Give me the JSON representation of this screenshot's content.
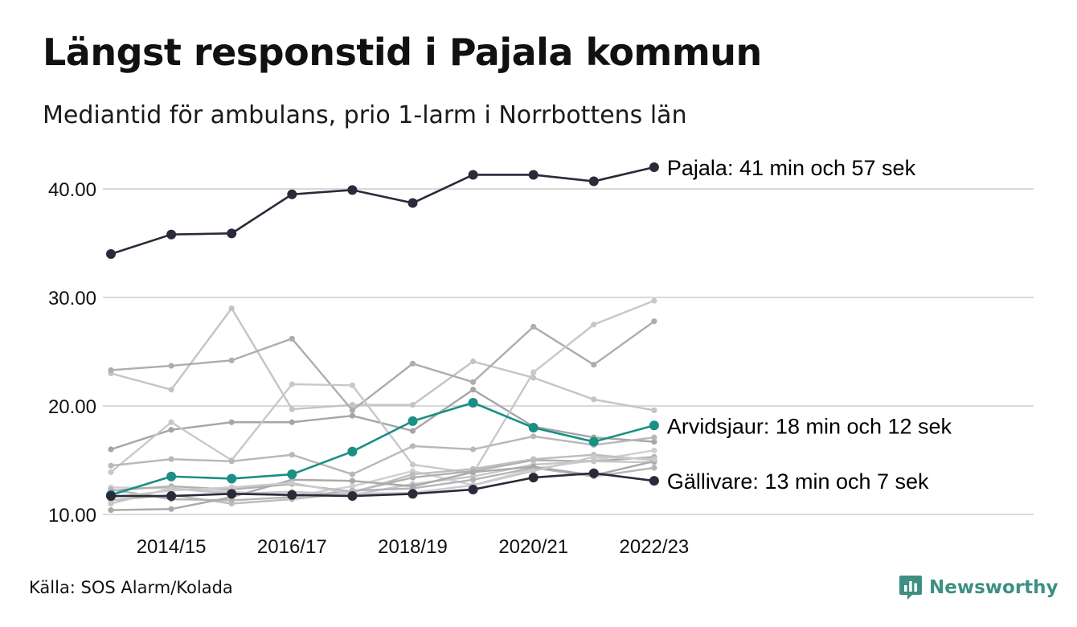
{
  "title": "Längst responstid i Pajala kommun",
  "subtitle": "Mediantid för ambulans, prio 1-larm i Norrbottens län",
  "source": "Källa: SOS Alarm/Kolada",
  "brand": {
    "name": "Newsworthy",
    "icon": "newsworthy-logo-icon",
    "color": "#3e8f84"
  },
  "colors": {
    "dark": "#2a2a3a",
    "teal": "#1a8f85",
    "grid": "#d9d9d9",
    "grays": [
      "#c4c4c4",
      "#adadad",
      "#a6a6a6",
      "#c8c8c8",
      "#b8b8b8",
      "#d0d0d0",
      "#b0b0b0",
      "#bdbdbd",
      "#c6c6c6",
      "#b4b4b4",
      "#a9a9a9",
      "#cacaca"
    ]
  },
  "chart_data": {
    "type": "line",
    "ylim": [
      10,
      42
    ],
    "yticks": [
      "10.00",
      "20.00",
      "30.00",
      "40.00"
    ],
    "ytick_values": [
      10,
      20,
      30,
      40
    ],
    "x": [
      "2013/14",
      "2014/15",
      "2015/16",
      "2016/17",
      "2017/18",
      "2018/19",
      "2019/20",
      "2020/21",
      "2021/22",
      "2022/23"
    ],
    "xticks": [
      "2014/15",
      "2016/17",
      "2018/19",
      "2020/21",
      "2022/23"
    ],
    "grid": true,
    "series": [
      {
        "values": [
          23.0,
          21.5,
          29.0,
          19.7,
          20.1,
          20.1,
          24.1,
          22.6,
          20.6,
          19.6
        ]
      },
      {
        "values": [
          23.3,
          23.7,
          24.2,
          26.2,
          19.6,
          23.9,
          22.2,
          27.3,
          23.8,
          27.8
        ]
      },
      {
        "values": [
          16.0,
          17.8,
          18.5,
          18.5,
          19.1,
          17.7,
          21.5,
          18.1,
          17.1,
          16.7
        ]
      },
      {
        "values": [
          13.9,
          18.5,
          15.0,
          22.0,
          21.9,
          14.6,
          13.8,
          23.1,
          27.5,
          29.7
        ]
      },
      {
        "values": [
          14.5,
          15.1,
          14.9,
          15.5,
          13.7,
          16.3,
          16.0,
          17.2,
          16.4,
          17.1
        ]
      },
      {
        "values": [
          12.5,
          12.4,
          12.1,
          11.7,
          12.6,
          14.0,
          12.7,
          14.2,
          15.0,
          15.9
        ]
      },
      {
        "values": [
          12.2,
          12.6,
          12.3,
          12.8,
          12.1,
          13.4,
          14.0,
          15.0,
          14.9,
          15.3
        ]
      },
      {
        "values": [
          11.3,
          11.8,
          11.0,
          11.4,
          12.0,
          13.7,
          14.2,
          15.1,
          15.5,
          15.0
        ]
      },
      {
        "values": [
          11.0,
          12.4,
          11.9,
          12.1,
          11.8,
          12.8,
          13.5,
          14.6,
          14.9,
          14.8
        ]
      },
      {
        "values": [
          12.3,
          11.4,
          11.3,
          11.6,
          12.2,
          12.4,
          13.2,
          14.3,
          13.5,
          14.3
        ]
      },
      {
        "values": [
          10.4,
          10.5,
          11.6,
          13.2,
          13.1,
          12.6,
          13.9,
          14.4,
          13.6,
          14.9
        ]
      },
      {
        "values": [
          11.6,
          12.2,
          12.5,
          12.9,
          11.9,
          12.0,
          12.7,
          14.0,
          15.3,
          15.1
        ]
      },
      {
        "name": "Pajala",
        "label": "Pajala: 41 min och 57 sek",
        "highlight": "dark",
        "values": [
          34.0,
          35.8,
          35.9,
          39.5,
          39.9,
          38.7,
          41.3,
          41.3,
          40.7,
          42.0
        ]
      },
      {
        "name": "Arvidsjaur",
        "label": "Arvidsjaur: 18 min och 12 sek",
        "highlight": "teal",
        "values": [
          11.8,
          13.5,
          13.3,
          13.7,
          15.8,
          18.6,
          20.3,
          18.0,
          16.7,
          18.2
        ]
      },
      {
        "name": "Gällivare",
        "label": "Gällivare: 13 min och 7 sek",
        "highlight": "dark",
        "values": [
          11.7,
          11.7,
          11.9,
          11.8,
          11.7,
          11.9,
          12.3,
          13.4,
          13.8,
          13.1
        ]
      }
    ]
  }
}
